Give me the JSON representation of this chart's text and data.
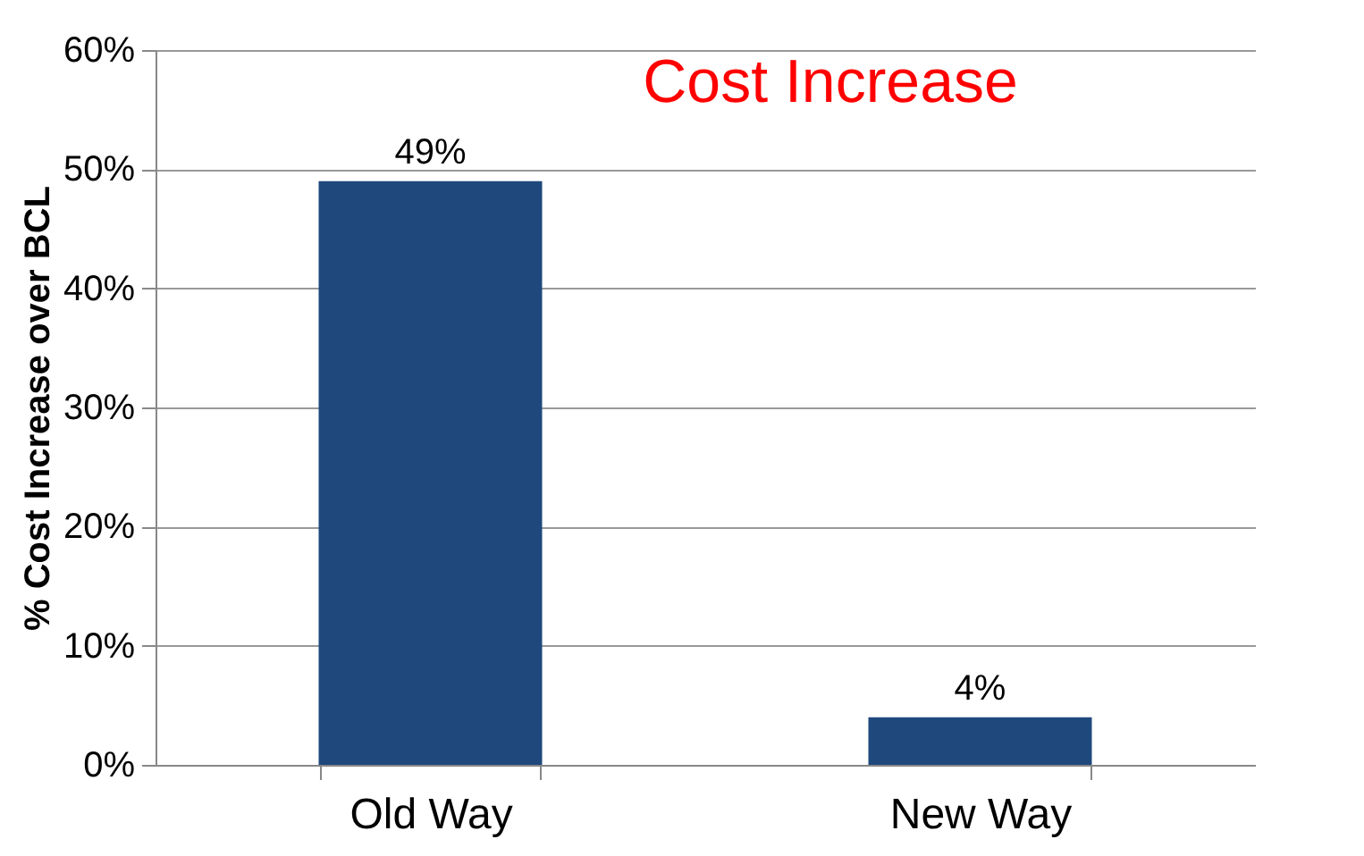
{
  "chart_data": {
    "type": "bar",
    "title": "Cost Increase",
    "ylabel": "% Cost Increase over BCL",
    "categories": [
      "Old Way",
      "New Way"
    ],
    "values": [
      49,
      4
    ],
    "color": "#1f497d",
    "value_labels": [
      "49%",
      "4%"
    ],
    "ylim": [
      0,
      60
    ],
    "yticks": [
      {
        "value": 0,
        "label": "0%"
      },
      {
        "value": 10,
        "label": "10%"
      },
      {
        "value": 20,
        "label": "20%"
      },
      {
        "value": 30,
        "label": "30%"
      },
      {
        "value": 40,
        "label": "40%"
      },
      {
        "value": 50,
        "label": "50%"
      },
      {
        "value": 60,
        "label": "60%"
      }
    ],
    "grid": "y"
  }
}
